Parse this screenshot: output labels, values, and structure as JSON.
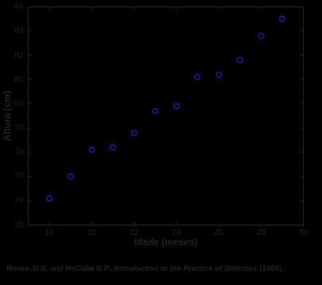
{
  "chart_data": {
    "type": "scatter",
    "x_label": "Idade (meses)",
    "y_label": "Altura (cm)",
    "x": [
      18,
      19,
      20,
      21,
      22,
      23,
      24,
      25,
      26,
      27,
      28,
      29
    ],
    "series": [
      {
        "name": "Altura",
        "color": "#1f1fd0",
        "values": [
          76.1,
          77.0,
          78.1,
          78.2,
          78.8,
          79.7,
          79.9,
          81.1,
          81.2,
          81.8,
          82.8,
          83.5
        ]
      }
    ],
    "xlim": [
      17,
      30
    ],
    "xticks": [
      18,
      20,
      22,
      24,
      26,
      28,
      30
    ],
    "ylim": [
      75,
      84
    ],
    "yticks": [
      75,
      76,
      77,
      78,
      79,
      80,
      81,
      82,
      83,
      84
    ]
  },
  "caption": {
    "authors": "Moore, D.S. and McCabe G.P., ",
    "book": "Introduction to the Practice of Statistics",
    "year": " (1989)."
  }
}
